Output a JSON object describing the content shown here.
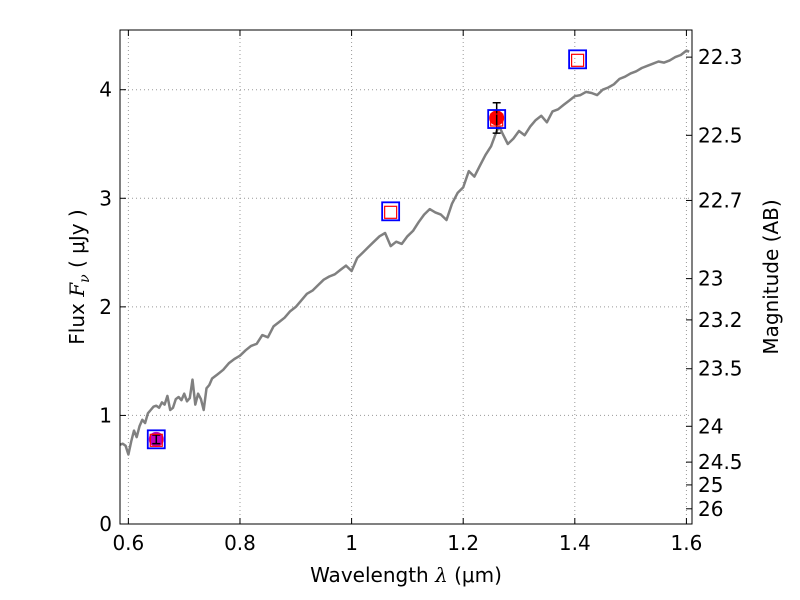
{
  "chart_data": {
    "type": "line",
    "xlabel": {
      "pre": "Wavelength  ",
      "sym": "λ",
      "post": " (μm)"
    },
    "ylabel": {
      "pre": "Flux  ",
      "sym": "F",
      "sub": "ν",
      "post": "  ( μJy )"
    },
    "ylabel_right": "Magnitude (AB)",
    "xlim": [
      0.585,
      1.61
    ],
    "ylim": [
      0,
      4.55
    ],
    "grid": true,
    "x_ticks": [
      0.6,
      0.8,
      1.0,
      1.2,
      1.4,
      1.6
    ],
    "x_tick_labels": [
      "0.6",
      "0.8",
      "1",
      "1.2",
      "1.4",
      "1.6"
    ],
    "y_ticks": [
      0,
      1,
      2,
      3,
      4
    ],
    "y_tick_labels": [
      "0",
      "1",
      "2",
      "3",
      "4"
    ],
    "right_ticks": [
      {
        "label": "22.3",
        "flux": 4.3
      },
      {
        "label": "22.5",
        "flux": 3.58
      },
      {
        "label": "22.7",
        "flux": 2.98
      },
      {
        "label": "23",
        "flux": 2.26
      },
      {
        "label": "23.2",
        "flux": 1.88
      },
      {
        "label": "23.5",
        "flux": 1.43
      },
      {
        "label": "24",
        "flux": 0.9
      },
      {
        "label": "24.5",
        "flux": 0.57
      },
      {
        "label": "25",
        "flux": 0.36
      },
      {
        "label": "26",
        "flux": 0.14
      }
    ],
    "series": [
      {
        "role": "model spectrum",
        "color": "#808080",
        "x": [
          0.585,
          0.59,
          0.595,
          0.6,
          0.605,
          0.61,
          0.615,
          0.62,
          0.625,
          0.63,
          0.635,
          0.64,
          0.645,
          0.65,
          0.655,
          0.66,
          0.665,
          0.67,
          0.675,
          0.68,
          0.685,
          0.69,
          0.695,
          0.7,
          0.705,
          0.71,
          0.715,
          0.72,
          0.725,
          0.73,
          0.735,
          0.74,
          0.745,
          0.75,
          0.76,
          0.77,
          0.78,
          0.79,
          0.8,
          0.81,
          0.82,
          0.83,
          0.84,
          0.85,
          0.86,
          0.87,
          0.88,
          0.89,
          0.9,
          0.91,
          0.92,
          0.93,
          0.94,
          0.95,
          0.96,
          0.97,
          0.98,
          0.99,
          1.0,
          1.01,
          1.02,
          1.03,
          1.04,
          1.05,
          1.06,
          1.07,
          1.08,
          1.09,
          1.1,
          1.11,
          1.12,
          1.13,
          1.14,
          1.15,
          1.16,
          1.17,
          1.18,
          1.19,
          1.2,
          1.21,
          1.22,
          1.23,
          1.24,
          1.25,
          1.26,
          1.265,
          1.27,
          1.28,
          1.29,
          1.3,
          1.31,
          1.32,
          1.33,
          1.34,
          1.35,
          1.36,
          1.37,
          1.38,
          1.39,
          1.4,
          1.41,
          1.42,
          1.43,
          1.44,
          1.45,
          1.46,
          1.47,
          1.48,
          1.49,
          1.5,
          1.51,
          1.52,
          1.53,
          1.54,
          1.55,
          1.56,
          1.57,
          1.58,
          1.59,
          1.6,
          1.605
        ],
        "y": [
          0.73,
          0.74,
          0.72,
          0.64,
          0.76,
          0.86,
          0.8,
          0.9,
          0.96,
          0.93,
          1.02,
          1.05,
          1.08,
          1.09,
          1.07,
          1.12,
          1.1,
          1.18,
          1.05,
          1.07,
          1.15,
          1.17,
          1.14,
          1.2,
          1.13,
          1.16,
          1.33,
          1.1,
          1.2,
          1.15,
          1.05,
          1.25,
          1.28,
          1.34,
          1.38,
          1.42,
          1.48,
          1.52,
          1.55,
          1.6,
          1.64,
          1.66,
          1.74,
          1.72,
          1.82,
          1.86,
          1.9,
          1.96,
          2.0,
          2.06,
          2.12,
          2.15,
          2.2,
          2.25,
          2.28,
          2.3,
          2.34,
          2.38,
          2.33,
          2.45,
          2.5,
          2.55,
          2.6,
          2.65,
          2.68,
          2.56,
          2.6,
          2.58,
          2.65,
          2.7,
          2.78,
          2.85,
          2.9,
          2.87,
          2.85,
          2.8,
          2.95,
          3.05,
          3.1,
          3.25,
          3.2,
          3.3,
          3.4,
          3.48,
          3.62,
          3.66,
          3.6,
          3.5,
          3.55,
          3.62,
          3.58,
          3.66,
          3.72,
          3.76,
          3.7,
          3.8,
          3.82,
          3.86,
          3.9,
          3.94,
          3.95,
          3.98,
          3.97,
          3.95,
          4.0,
          4.02,
          4.05,
          4.1,
          4.12,
          4.15,
          4.17,
          4.2,
          4.22,
          4.24,
          4.26,
          4.25,
          4.27,
          4.3,
          4.32,
          4.36,
          4.35
        ]
      }
    ],
    "points": [
      {
        "role": "observed",
        "color": "#ff0000",
        "x": 1.26,
        "y": 3.74,
        "err": 0.14
      },
      {
        "role": "observed",
        "color": "#bf00bf",
        "x": 0.65,
        "y": 0.78,
        "err": 0.04
      }
    ],
    "model_boxes": [
      {
        "x": 0.65,
        "y": 0.78
      },
      {
        "x": 1.07,
        "y": 2.88
      },
      {
        "x": 1.26,
        "y": 3.73
      },
      {
        "x": 1.405,
        "y": 4.28
      }
    ],
    "colors": {
      "box_outer": "#0000ff",
      "box_inner": "#ff0000",
      "grid": "#999999"
    }
  }
}
